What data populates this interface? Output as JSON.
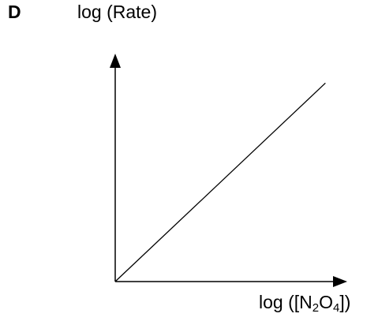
{
  "option_letter": "D",
  "chart_data": {
    "type": "line",
    "title": "",
    "ylabel": "log (Rate)",
    "xlabel_parts": [
      "log ([N",
      "2",
      "O",
      "4",
      "])"
    ],
    "x": [
      0,
      1
    ],
    "series": [
      {
        "values": [
          0,
          1
        ]
      }
    ],
    "xlim": [
      0,
      1.1
    ],
    "ylim": [
      0,
      1.2
    ],
    "grid": false,
    "ticks": false,
    "line_color": "#000000"
  }
}
